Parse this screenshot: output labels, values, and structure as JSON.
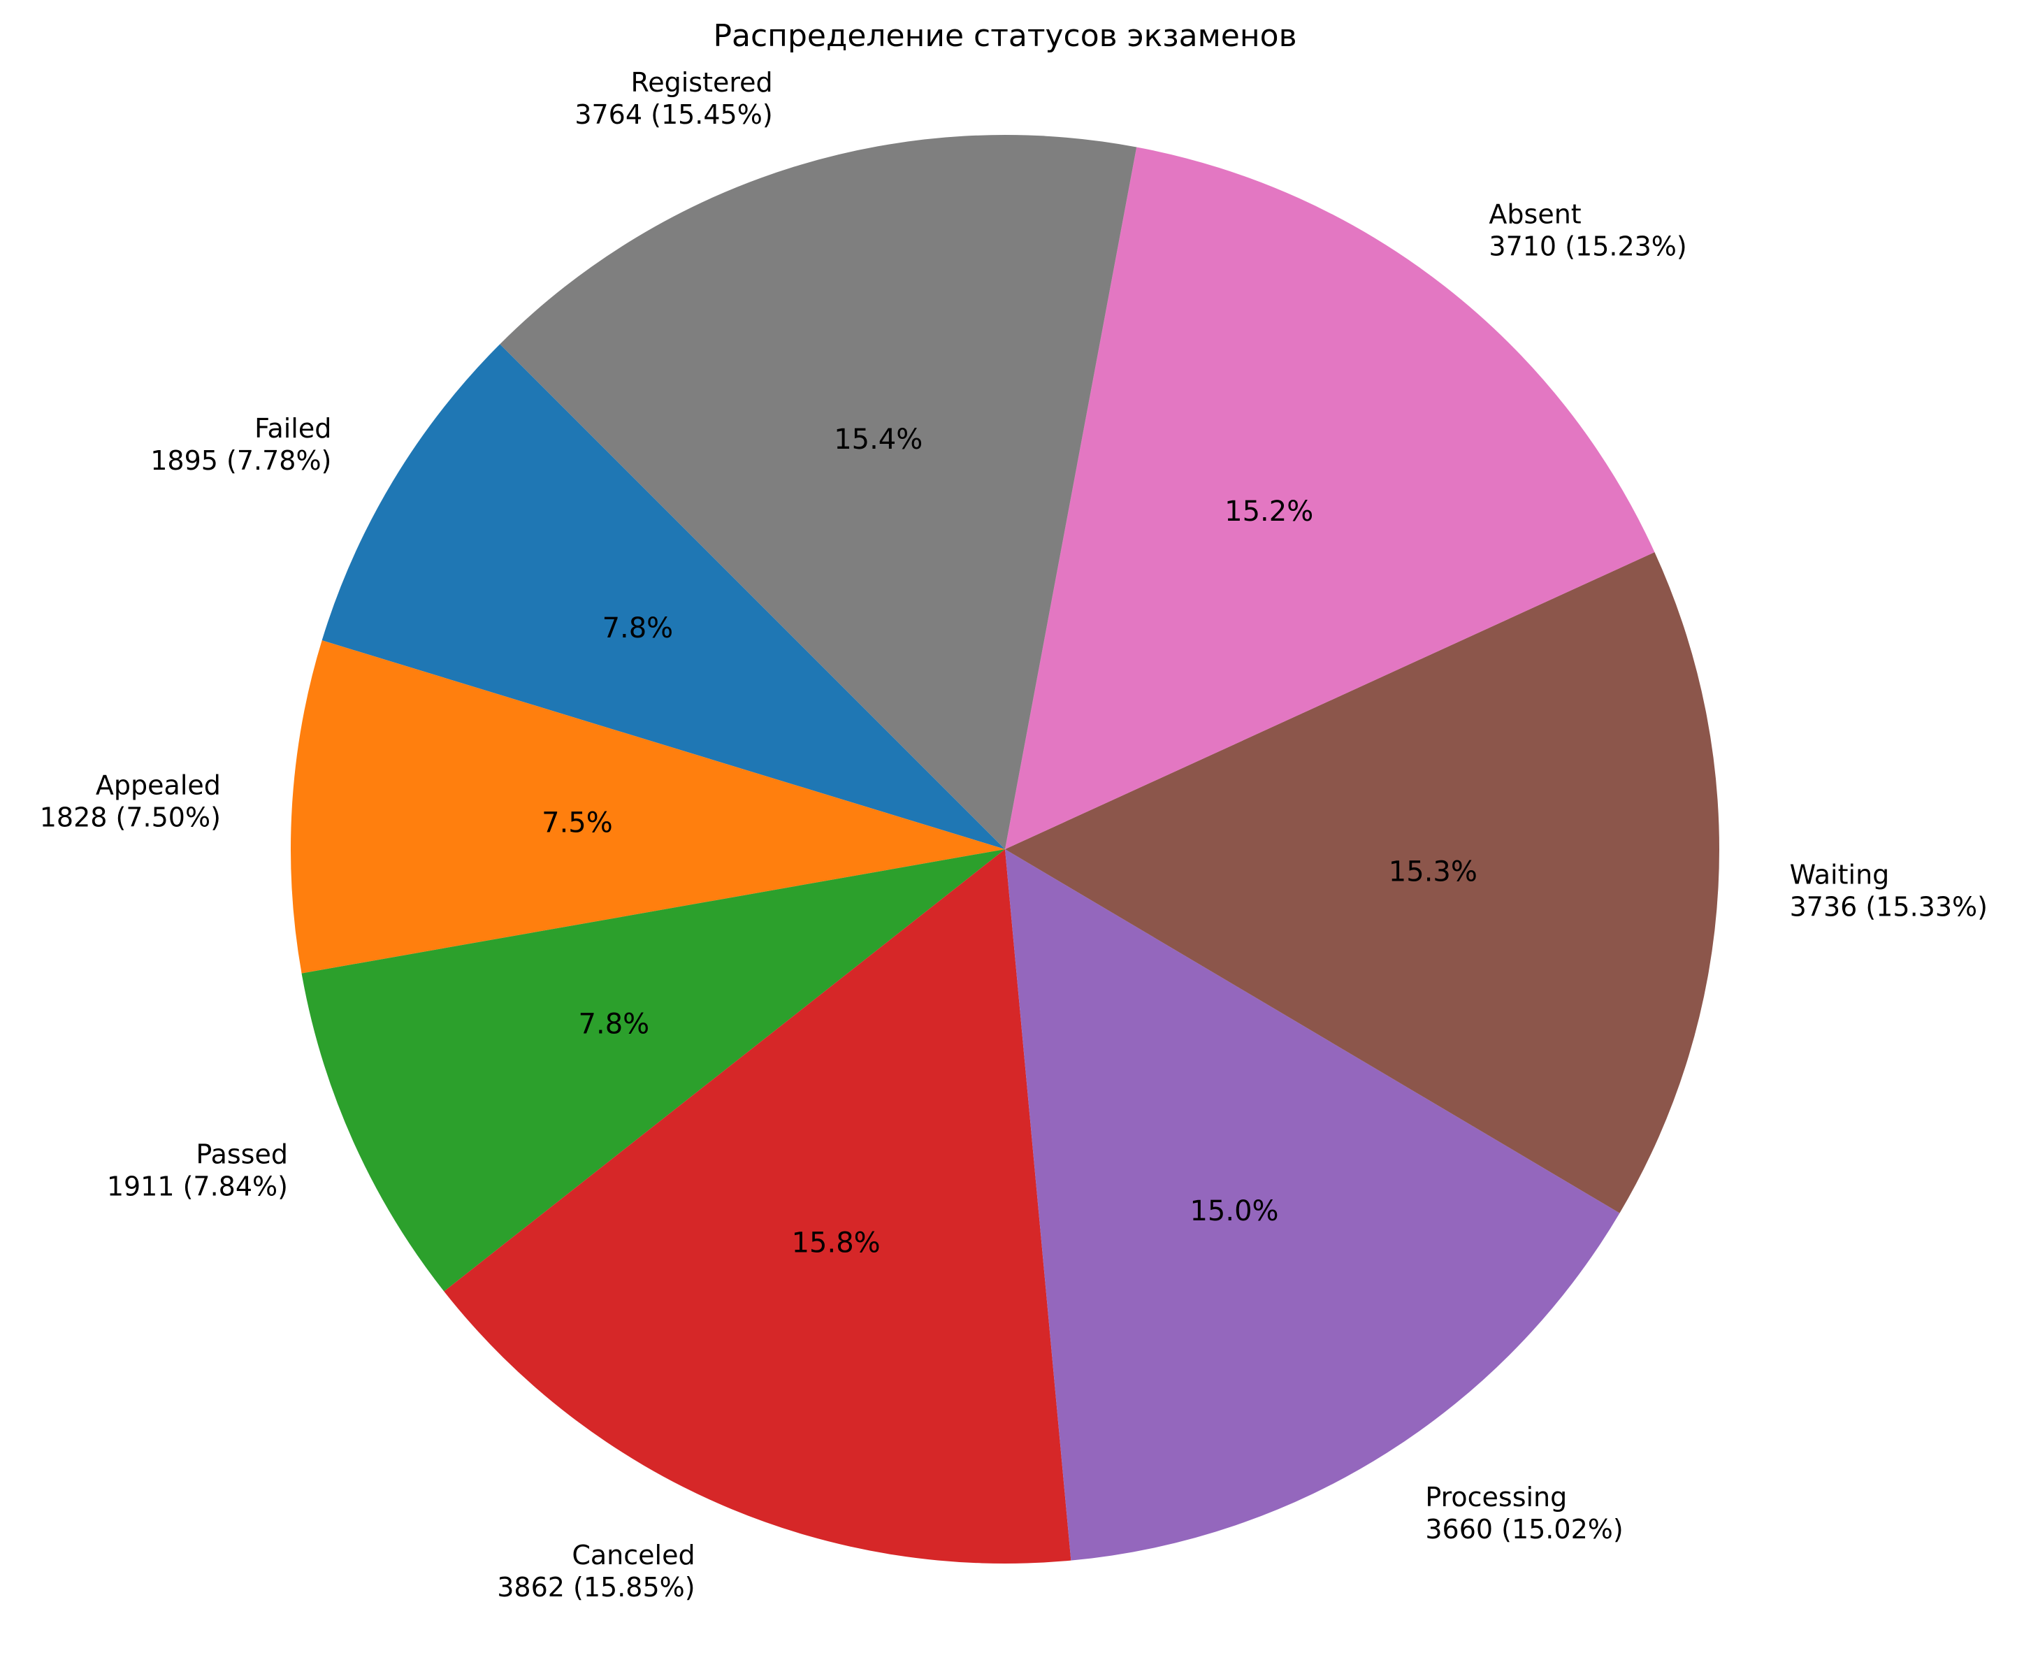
{
  "chart_data": {
    "type": "pie",
    "title": "Распределение статусов экзаменов",
    "slices": [
      {
        "label": "Failed",
        "value": 1895,
        "value_text": "1895 (7.78%)",
        "pct_text": "7.8%",
        "color": "#1f77b4"
      },
      {
        "label": "Appealed",
        "value": 1828,
        "value_text": "1828 (7.50%)",
        "pct_text": "7.5%",
        "color": "#ff7f0e"
      },
      {
        "label": "Passed",
        "value": 1911,
        "value_text": "1911 (7.84%)",
        "pct_text": "7.8%",
        "color": "#2ca02c"
      },
      {
        "label": "Canceled",
        "value": 3862,
        "value_text": "3862 (15.85%)",
        "pct_text": "15.8%",
        "color": "#d62728"
      },
      {
        "label": "Processing",
        "value": 3660,
        "value_text": "3660 (15.02%)",
        "pct_text": "15.0%",
        "color": "#9467bd"
      },
      {
        "label": "Waiting",
        "value": 3736,
        "value_text": "3736 (15.33%)",
        "pct_text": "15.3%",
        "color": "#8c564b"
      },
      {
        "label": "Absent",
        "value": 3710,
        "value_text": "3710 (15.23%)",
        "pct_text": "15.2%",
        "color": "#e377c2"
      },
      {
        "label": "Registered",
        "value": 3764,
        "value_text": "3764 (15.45%)",
        "pct_text": "15.4%",
        "color": "#7f7f7f"
      }
    ],
    "start_angle_deg": 135,
    "direction": "counterclockwise",
    "legend": "none"
  }
}
